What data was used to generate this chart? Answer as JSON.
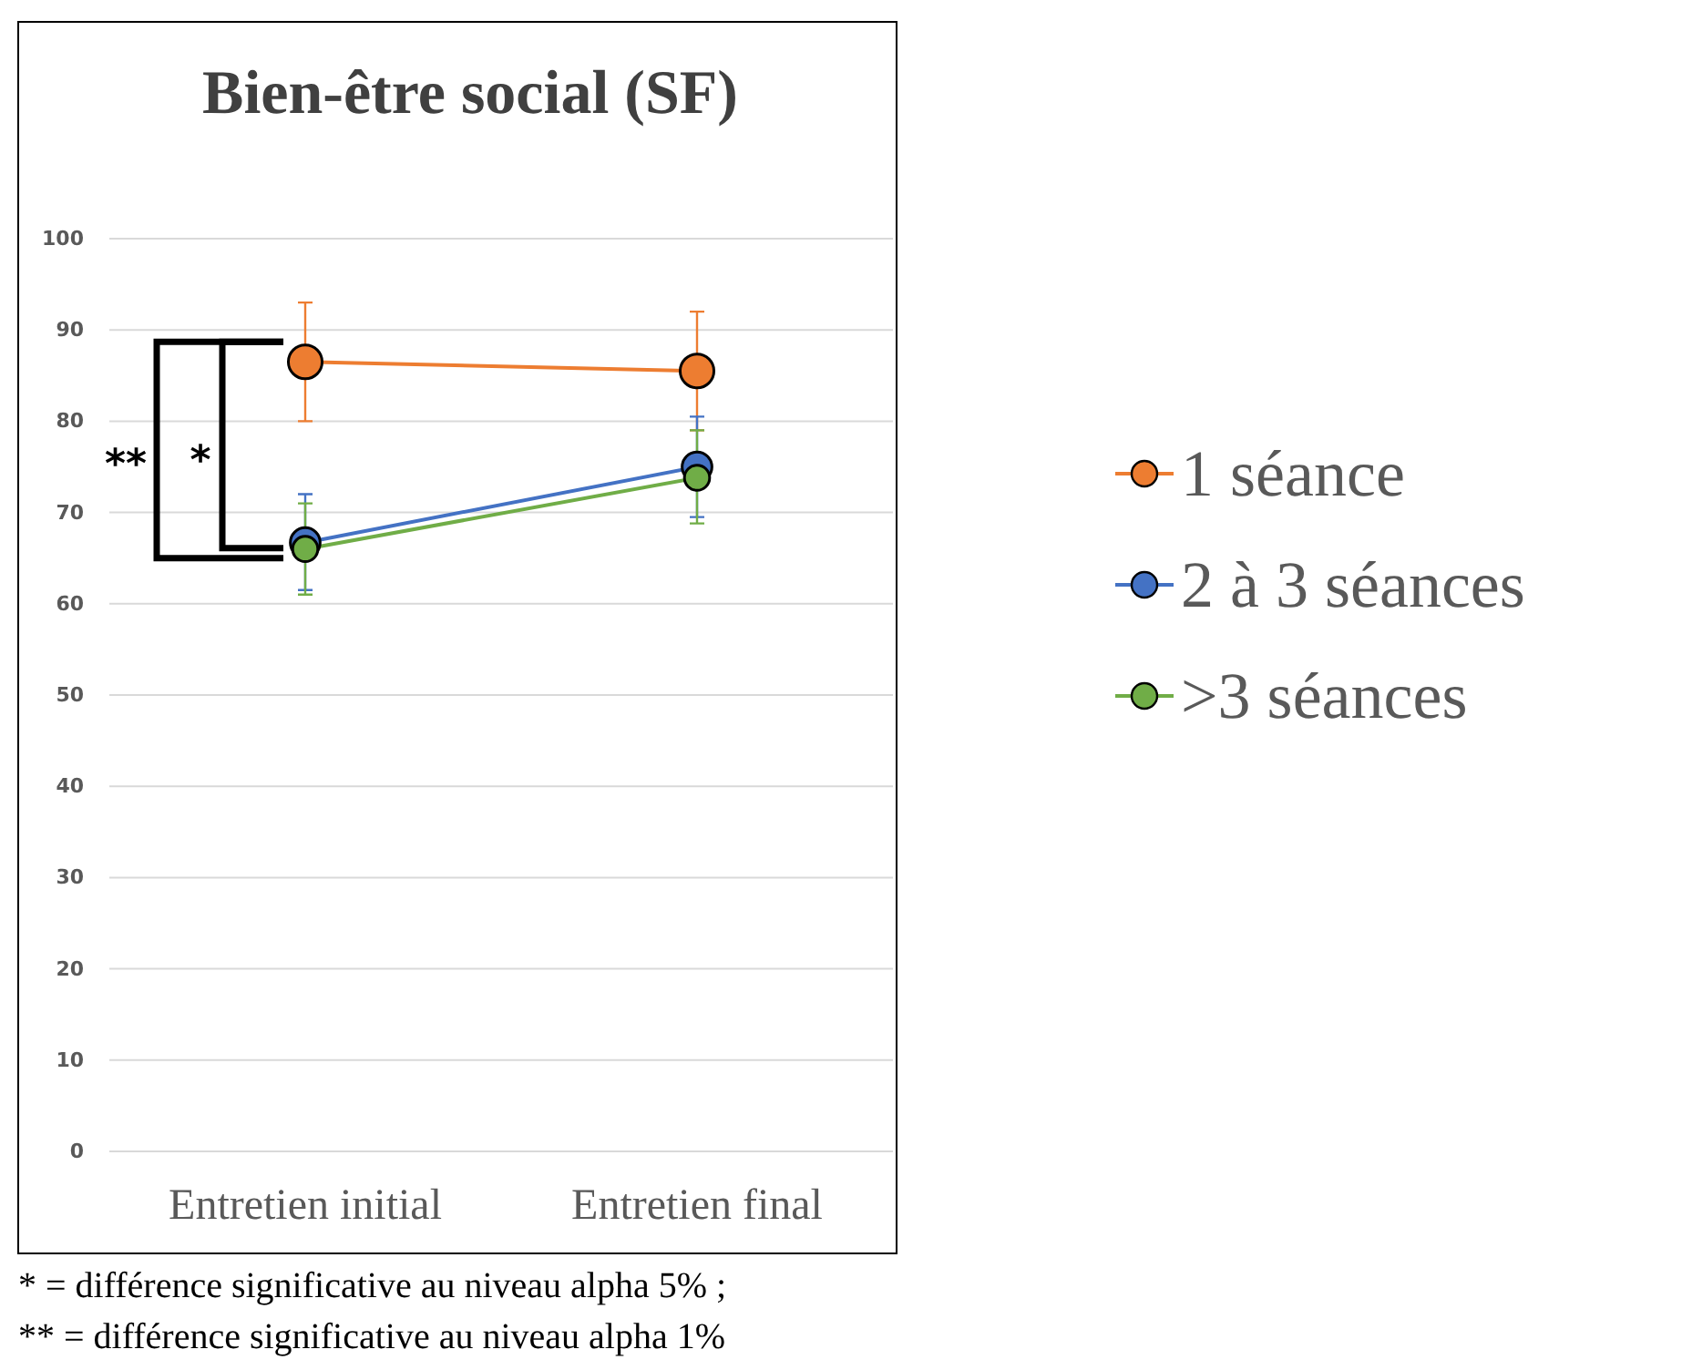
{
  "chart_data": {
    "type": "line",
    "title": "Bien-être social (SF)",
    "categories": [
      "Entretien initial",
      "Entretien final"
    ],
    "series": [
      {
        "name": "1 séance",
        "color": "#ed7d31",
        "values": [
          86.5,
          85.5
        ],
        "errors": [
          [
            80,
            93
          ],
          [
            79,
            92
          ]
        ]
      },
      {
        "name": "2 à 3 séances",
        "color": "#4472c4",
        "values": [
          66.7,
          75
        ],
        "errors": [
          [
            61.5,
            72
          ],
          [
            69.5,
            80.5
          ]
        ]
      },
      {
        "name": ">3 séances",
        "color": "#70ad47",
        "values": [
          66,
          73.8
        ],
        "errors": [
          [
            61,
            71
          ],
          [
            68.8,
            79
          ]
        ]
      }
    ],
    "ylim": [
      0,
      100
    ],
    "yticks": [
      0,
      10,
      20,
      30,
      40,
      50,
      60,
      70,
      80,
      90,
      100
    ],
    "grid": "y",
    "legend": "right",
    "marker": "circle",
    "line_style": "solid",
    "annotations": [
      "**",
      "*",
      "* = différence significative au niveau alpha 5% ;",
      "** = différence significative au niveau alpha 1%"
    ]
  }
}
